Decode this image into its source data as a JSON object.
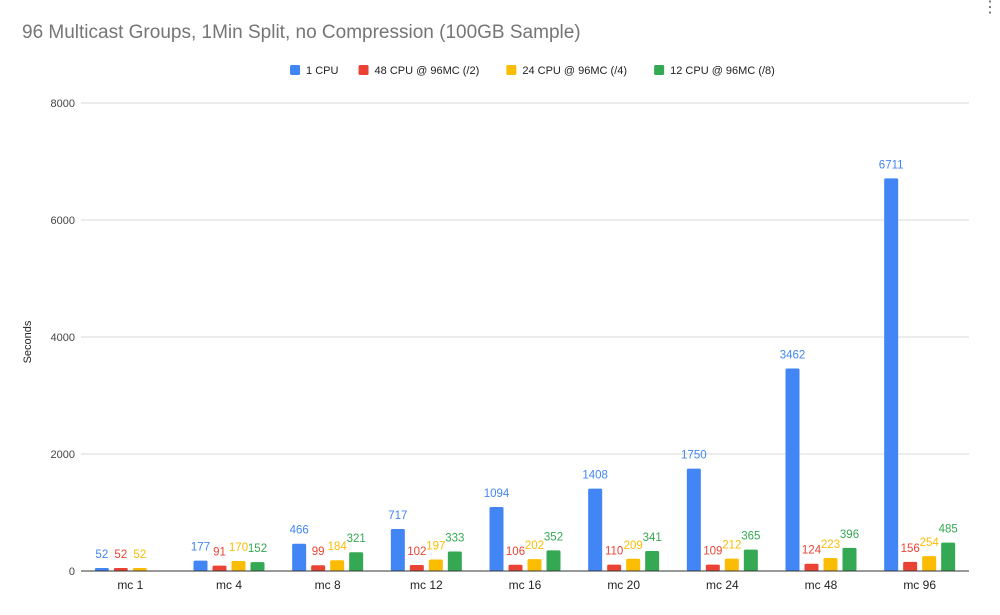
{
  "chart_data": {
    "type": "bar",
    "title": "96 Multicast Groups, 1Min Split,  no Compression (100GB Sample)",
    "xlabel": "",
    "ylabel": "Seconds",
    "ylim": [
      0,
      8000
    ],
    "yticks": [
      0,
      2000,
      4000,
      6000,
      8000
    ],
    "grid": true,
    "legend_position": "top",
    "categories": [
      "mc 1",
      "mc 4",
      "mc 8",
      "mc 12",
      "mc 16",
      "mc 20",
      "mc 24",
      "mc 48",
      "mc 96"
    ],
    "series": [
      {
        "name": "1 CPU",
        "color": "#4285f4",
        "values": [
          52,
          177,
          466,
          717,
          1094,
          1408,
          1750,
          3462,
          6711
        ]
      },
      {
        "name": "48 CPU @ 96MC (/2)",
        "color": "#ea4335",
        "values": [
          52,
          91,
          99,
          102,
          106,
          110,
          109,
          124,
          156
        ]
      },
      {
        "name": "24 CPU @ 96MC (/4)",
        "color": "#fbbc04",
        "values": [
          52,
          170,
          184,
          197,
          202,
          209,
          212,
          223,
          254
        ]
      },
      {
        "name": "12 CPU @ 96MC (/8)",
        "color": "#34a853",
        "values": [
          null,
          152,
          321,
          333,
          352,
          341,
          365,
          396,
          485
        ]
      }
    ]
  }
}
